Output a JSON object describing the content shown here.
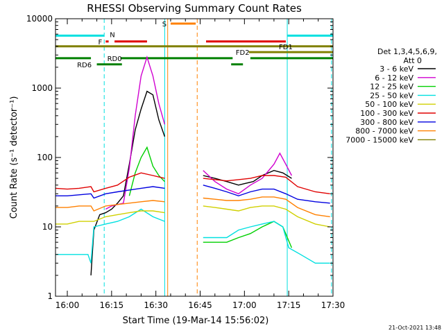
{
  "chart_data": {
    "type": "line",
    "title": "RHESSI Observing Summary Count Rates",
    "xlabel": "Start Time (19-Mar-14 15:56:02)",
    "ylabel": "Count Rate (s⁻¹ detector⁻¹)",
    "y_scale": "log",
    "ylim": [
      1,
      10000
    ],
    "xlim_minutes": [
      -4,
      90
    ],
    "x_ticks": [
      {
        "m": 0,
        "label": "16:00"
      },
      {
        "m": 15,
        "label": "16:15"
      },
      {
        "m": 30,
        "label": "16:30"
      },
      {
        "m": 45,
        "label": "16:45"
      },
      {
        "m": 60,
        "label": "17:00"
      },
      {
        "m": 75,
        "label": "17:15"
      },
      {
        "m": 90,
        "label": "17:30"
      }
    ],
    "y_ticks": [
      {
        "v": 1,
        "label": "1"
      },
      {
        "v": 10,
        "label": "10"
      },
      {
        "v": 100,
        "label": "100"
      },
      {
        "v": 1000,
        "label": "1000"
      },
      {
        "v": 10000,
        "label": "10000"
      }
    ],
    "legend_title": [
      "Det 1,3,4,5,6,9,",
      "Att 0"
    ],
    "series": [
      {
        "name": "3 - 6 keV",
        "color": "#000000",
        "segments": [
          [
            [
              8,
              2
            ],
            [
              9,
              9
            ],
            [
              11,
              15
            ],
            [
              13,
              16
            ],
            [
              15,
              18
            ],
            [
              17,
              22
            ],
            [
              19,
              28
            ],
            [
              21,
              80
            ],
            [
              23,
              250
            ],
            [
              25,
              500
            ],
            [
              27,
              900
            ],
            [
              29,
              800
            ],
            [
              31,
              350
            ],
            [
              33,
              200
            ]
          ],
          [
            [
              46,
              55
            ],
            [
              50,
              50
            ],
            [
              54,
              45
            ],
            [
              58,
              40
            ],
            [
              60,
              42
            ],
            [
              63,
              45
            ],
            [
              66,
              55
            ],
            [
              70,
              65
            ],
            [
              73,
              60
            ],
            [
              76,
              50
            ]
          ]
        ]
      },
      {
        "name": "6 - 12 keV",
        "color": "#d000d0",
        "segments": [
          [
            [
              13,
              18
            ],
            [
              15,
              20
            ],
            [
              17,
              21
            ],
            [
              19,
              22
            ],
            [
              21,
              70
            ],
            [
              23,
              400
            ],
            [
              25,
              1500
            ],
            [
              27,
              2800
            ],
            [
              29,
              1500
            ],
            [
              31,
              600
            ],
            [
              33,
              300
            ]
          ],
          [
            [
              46,
              65
            ],
            [
              50,
              45
            ],
            [
              54,
              35
            ],
            [
              58,
              30
            ],
            [
              62,
              40
            ],
            [
              66,
              50
            ],
            [
              70,
              80
            ],
            [
              72,
              115
            ],
            [
              74,
              80
            ],
            [
              76,
              55
            ]
          ]
        ]
      },
      {
        "name": "12 - 25 keV",
        "color": "#00d000",
        "segments": [
          [
            [
              21,
              28
            ],
            [
              23,
              60
            ],
            [
              25,
              100
            ],
            [
              27,
              140
            ],
            [
              29,
              75
            ],
            [
              31,
              55
            ],
            [
              33,
              45
            ]
          ],
          [
            [
              46,
              6
            ],
            [
              50,
              6
            ],
            [
              54,
              6
            ],
            [
              58,
              7
            ],
            [
              62,
              8
            ],
            [
              66,
              10
            ],
            [
              70,
              12
            ],
            [
              73,
              10
            ],
            [
              76,
              5
            ]
          ]
        ]
      },
      {
        "name": "25 - 50 keV",
        "color": "#00e0e0",
        "segments": [
          [
            [
              -4,
              4
            ],
            [
              0,
              4
            ],
            [
              4,
              4
            ],
            [
              7,
              4
            ],
            [
              8,
              3
            ],
            [
              9,
              10
            ],
            [
              13,
              11
            ],
            [
              17,
              12
            ],
            [
              21,
              14
            ],
            [
              25,
              18
            ],
            [
              29,
              14
            ],
            [
              33,
              12
            ]
          ],
          [
            [
              46,
              7
            ],
            [
              50,
              7
            ],
            [
              54,
              7
            ],
            [
              58,
              9
            ],
            [
              62,
              10
            ],
            [
              66,
              11
            ],
            [
              70,
              12
            ],
            [
              73,
              10
            ],
            [
              75,
              5
            ],
            [
              79,
              4
            ],
            [
              84,
              3
            ],
            [
              89,
              3
            ]
          ]
        ]
      },
      {
        "name": "50 - 100 keV",
        "color": "#d0d000",
        "segments": [
          [
            [
              -4,
              11
            ],
            [
              0,
              11
            ],
            [
              4,
              12
            ],
            [
              8,
              12
            ],
            [
              9,
              12
            ],
            [
              13,
              14
            ],
            [
              17,
              15
            ],
            [
              21,
              16
            ],
            [
              25,
              17
            ],
            [
              29,
              17
            ],
            [
              33,
              16
            ]
          ],
          [
            [
              46,
              20
            ],
            [
              50,
              19
            ],
            [
              54,
              18
            ],
            [
              58,
              17
            ],
            [
              62,
              19
            ],
            [
              66,
              20
            ],
            [
              70,
              20
            ],
            [
              74,
              18
            ],
            [
              78,
              14
            ],
            [
              84,
              11
            ],
            [
              89,
              10
            ]
          ]
        ]
      },
      {
        "name": "100 - 300 keV",
        "color": "#e00000",
        "segments": [
          [
            [
              -4,
              36
            ],
            [
              0,
              35
            ],
            [
              4,
              36
            ],
            [
              8,
              38
            ],
            [
              9,
              32
            ],
            [
              13,
              36
            ],
            [
              17,
              40
            ],
            [
              21,
              52
            ],
            [
              25,
              60
            ],
            [
              29,
              55
            ],
            [
              33,
              50
            ]
          ],
          [
            [
              46,
              50
            ],
            [
              50,
              48
            ],
            [
              54,
              46
            ],
            [
              58,
              48
            ],
            [
              62,
              50
            ],
            [
              66,
              55
            ],
            [
              70,
              55
            ],
            [
              74,
              52
            ],
            [
              78,
              38
            ],
            [
              84,
              32
            ],
            [
              89,
              30
            ]
          ]
        ]
      },
      {
        "name": "300 - 800 keV",
        "color": "#0000e0",
        "segments": [
          [
            [
              -4,
              28
            ],
            [
              0,
              28
            ],
            [
              4,
              29
            ],
            [
              8,
              30
            ],
            [
              9,
              26
            ],
            [
              13,
              30
            ],
            [
              17,
              32
            ],
            [
              21,
              34
            ],
            [
              25,
              36
            ],
            [
              29,
              38
            ],
            [
              33,
              36
            ]
          ],
          [
            [
              46,
              40
            ],
            [
              50,
              36
            ],
            [
              54,
              32
            ],
            [
              58,
              28
            ],
            [
              62,
              32
            ],
            [
              66,
              35
            ],
            [
              70,
              35
            ],
            [
              74,
              30
            ],
            [
              78,
              25
            ],
            [
              84,
              23
            ],
            [
              89,
              22
            ]
          ]
        ]
      },
      {
        "name": "800 - 7000 keV",
        "color": "#ff8000",
        "segments": [
          [
            [
              -4,
              19
            ],
            [
              0,
              19
            ],
            [
              4,
              20
            ],
            [
              8,
              20
            ],
            [
              9,
              17
            ],
            [
              13,
              20
            ],
            [
              17,
              21
            ],
            [
              21,
              22
            ],
            [
              25,
              23
            ],
            [
              29,
              24
            ],
            [
              33,
              23
            ]
          ],
          [
            [
              46,
              26
            ],
            [
              50,
              25
            ],
            [
              54,
              24
            ],
            [
              58,
              24
            ],
            [
              62,
              25
            ],
            [
              66,
              27
            ],
            [
              70,
              27
            ],
            [
              74,
              25
            ],
            [
              78,
              19
            ],
            [
              84,
              15
            ],
            [
              89,
              14
            ]
          ]
        ]
      },
      {
        "name": "7000 - 15000 keV",
        "color": "#808000",
        "segments": []
      }
    ],
    "vertical_lines": [
      {
        "m": -4,
        "color": "#00e0e0",
        "style": "solid"
      },
      {
        "m": 12.5,
        "color": "#00e0e0",
        "style": "dashed"
      },
      {
        "m": 33,
        "color": "#00e0e0",
        "style": "solid"
      },
      {
        "m": 34,
        "color": "#ff8000",
        "style": "solid"
      },
      {
        "m": 44,
        "color": "#ff8000",
        "style": "dashed"
      },
      {
        "m": 74.5,
        "color": "#00e0e0",
        "style": "solid"
      },
      {
        "m": 89.5,
        "color": "#00e0e0",
        "style": "dashed"
      }
    ],
    "flag_bars": [
      {
        "label": "N",
        "color": "#00e0e0",
        "y": 5700,
        "spans": [
          [
            -4,
            12.5
          ],
          [
            74.5,
            90
          ]
        ]
      },
      {
        "label": "F",
        "color": "#e00000",
        "y": 4700,
        "spans": [
          [
            13,
            14
          ],
          [
            16,
            27
          ],
          [
            47,
            74
          ]
        ]
      },
      {
        "label": "S",
        "color": "#ff8000",
        "y": 8500,
        "spans": [
          [
            35,
            43.5
          ]
        ]
      },
      {
        "label": "FD1",
        "color": "#808000",
        "y": 4000,
        "spans": [
          [
            -4,
            90
          ]
        ]
      },
      {
        "label": "FD2",
        "color": "#808000",
        "y": 3300,
        "spans": [
          [
            61.5,
            90
          ]
        ]
      },
      {
        "label": "RD0",
        "color": "#008000",
        "y": 2700,
        "spans": [
          [
            -4,
            8
          ],
          [
            18,
            56
          ],
          [
            62,
            90
          ]
        ]
      },
      {
        "label": "RD6",
        "color": "#008000",
        "y": 2200,
        "spans": [
          [
            10,
            18.5
          ],
          [
            55.5,
            59.5
          ]
        ]
      }
    ],
    "footer_date": "21-Oct-2021 13:48"
  }
}
